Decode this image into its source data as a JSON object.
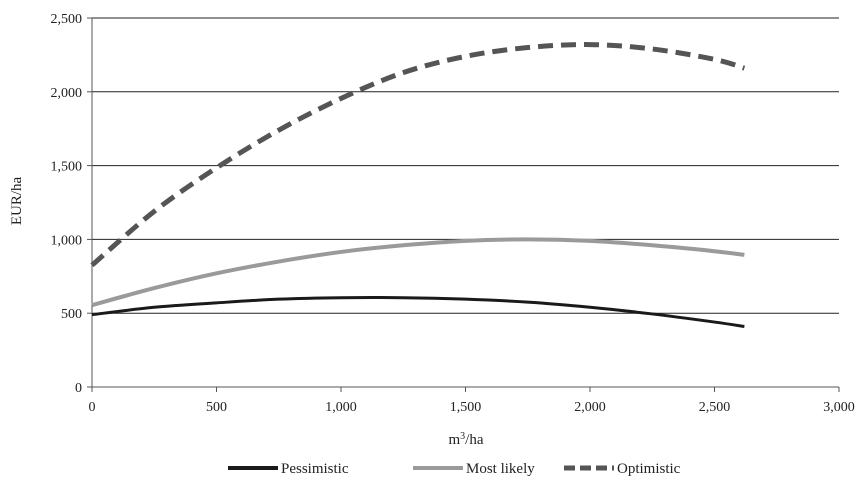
{
  "chart_data": {
    "type": "line",
    "xlabel_base": "m",
    "xlabel_sup": "3",
    "xlabel_suffix": "/ha",
    "ylabel": "EUR/ha",
    "xlim": [
      0,
      3000
    ],
    "ylim": [
      0,
      2500
    ],
    "x_ticks": [
      "0",
      "500",
      "1,000",
      "1,500",
      "2,000",
      "2,500",
      "3,000"
    ],
    "y_ticks": [
      "0",
      "500",
      "1,000",
      "1,500",
      "2,000",
      "2,500"
    ],
    "grid": "horizontal",
    "legend_position": "bottom",
    "series": [
      {
        "name": "Pessimistic",
        "color": "#1a1a1a",
        "style": "solid",
        "x": [
          0,
          250,
          500,
          750,
          1000,
          1250,
          1500,
          1750,
          2000,
          2250,
          2500,
          2620
        ],
        "y": [
          490,
          540,
          570,
          595,
          605,
          605,
          595,
          575,
          540,
          495,
          440,
          410
        ]
      },
      {
        "name": "Most likely",
        "color": "#9a9a9a",
        "style": "solid",
        "x": [
          0,
          250,
          500,
          750,
          1000,
          1250,
          1500,
          1750,
          2000,
          2250,
          2500,
          2620
        ],
        "y": [
          555,
          670,
          770,
          850,
          915,
          960,
          990,
          1000,
          990,
          960,
          920,
          895
        ]
      },
      {
        "name": "Optimistic",
        "color": "#555555",
        "style": "dashed",
        "x": [
          0,
          250,
          500,
          750,
          1000,
          1250,
          1500,
          1750,
          2000,
          2250,
          2500,
          2620
        ],
        "y": [
          825,
          1190,
          1485,
          1740,
          1955,
          2130,
          2240,
          2300,
          2320,
          2290,
          2220,
          2160
        ]
      }
    ]
  }
}
